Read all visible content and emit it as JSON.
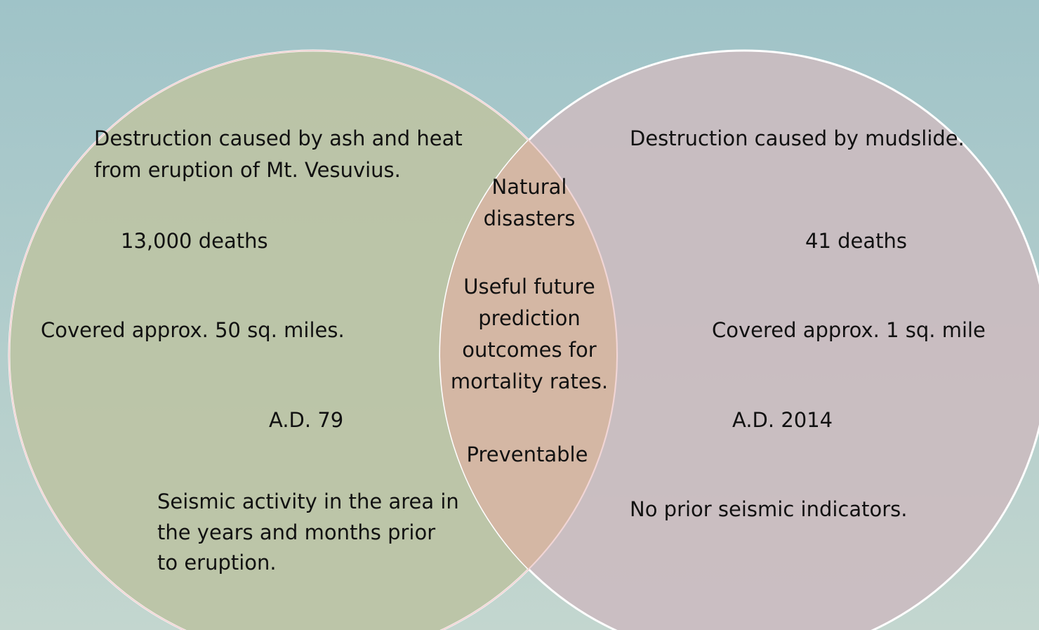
{
  "left": {
    "items": [
      "Destruction caused by ash and heat",
      "from eruption of Mt. Vesuvius.",
      "13,000 deaths",
      "Covered approx. 50 sq. miles.",
      "A.D. 79",
      "Seismic activity in the area in",
      "the years and months prior",
      "to eruption."
    ]
  },
  "center": {
    "items": [
      "Natural",
      "disasters",
      "Useful future",
      "prediction",
      "outcomes for",
      "mortality rates.",
      "Preventable"
    ]
  },
  "right": {
    "items": [
      "Destruction caused by mudslide.",
      "41 deaths",
      "Covered approx. 1 sq. mile",
      "A.D. 2014",
      "No prior seismic indicators."
    ]
  }
}
